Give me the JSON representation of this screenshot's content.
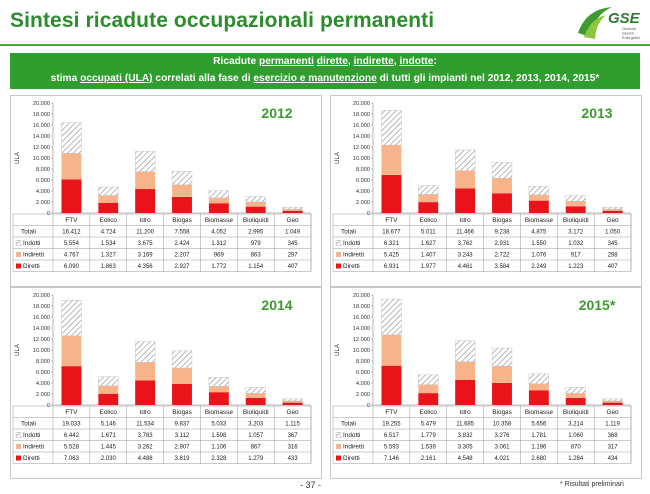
{
  "header": {
    "title": "Sintesi ricadute occupazionali permanenti",
    "logo_text": "GSE",
    "logo_sub1": "Gestore",
    "logo_sub2": "Servizi",
    "logo_sub3": "Energetici"
  },
  "banner": {
    "l1_a": "Ricadute ",
    "l1_b": "permanenti",
    "l1_c": " ",
    "l1_d": "dirette",
    "l1_e": ", ",
    "l1_f": "indirette",
    "l1_g": ", ",
    "l1_h": "indotte",
    "l1_i": ":",
    "l2_a": "stima ",
    "l2_b": "occupati (ULA)",
    "l2_c": " correlati alla fase di ",
    "l2_d": "esercizio e manutenzione",
    "l2_e": "  di tutti gli impianti nel 2012, 2013, 2014, 2015*"
  },
  "footer": {
    "page": "- 37 -",
    "note": "* Risultati preliminari"
  },
  "colors": {
    "diretti": "#e8141a",
    "indiretti": "#f7b48c",
    "indotti_stroke": "#9a9a9a",
    "green": "#2f9e2f"
  },
  "chart_data": [
    {
      "type": "bar",
      "stacked": true,
      "year": "2012",
      "ylabel": "ULA",
      "ylim": [
        0,
        20000
      ],
      "yticks": [
        "0",
        "2.000",
        "4.000",
        "6.000",
        "8.000",
        "10.000",
        "12.000",
        "14.000",
        "16.000",
        "18.000",
        "20.000"
      ],
      "categories": [
        "FTV",
        "Eolico",
        "Idro",
        "Biogas",
        "Biomasse",
        "Bioliquidi",
        "Geo"
      ],
      "row_labels": {
        "totali": "Totali",
        "indotti": "Indotti",
        "indiretti": "Indiretti",
        "diretti": "Diretti"
      },
      "series": [
        {
          "name": "Diretti",
          "values": [
            6090,
            1863,
            4356,
            2927,
            1772,
            1154,
            407
          ]
        },
        {
          "name": "Indiretti",
          "values": [
            4767,
            1327,
            3169,
            2207,
            969,
            863,
            297
          ]
        },
        {
          "name": "Indotti",
          "values": [
            5554,
            1534,
            3675,
            2424,
            1312,
            979,
            345
          ]
        }
      ],
      "table": {
        "totali": [
          "16.412",
          "4.724",
          "11.200",
          "7.558",
          "4.052",
          "2.995",
          "1.049"
        ],
        "indotti": [
          "5.554",
          "1.534",
          "3.675",
          "2.424",
          "1.312",
          "979",
          "345"
        ],
        "indiretti": [
          "4.767",
          "1.327",
          "3.169",
          "2.207",
          "969",
          "863",
          "297"
        ],
        "diretti": [
          "6.090",
          "1.863",
          "4.356",
          "2.927",
          "1.772",
          "1.154",
          "407"
        ]
      }
    },
    {
      "type": "bar",
      "stacked": true,
      "year": "2013",
      "ylabel": "ULA",
      "ylim": [
        0,
        20000
      ],
      "yticks": [
        "0",
        "2.000",
        "4.000",
        "6.000",
        "8.000",
        "10.000",
        "12.000",
        "14.000",
        "16.000",
        "18.000",
        "20.000"
      ],
      "categories": [
        "FTV",
        "Eolico",
        "Idro",
        "Biogas",
        "Biomasse",
        "Bioliquidi",
        "Geo"
      ],
      "row_labels": {
        "totali": "Totali",
        "indotti": "Indotti",
        "indiretti": "Indiretti",
        "diretti": "Diretti"
      },
      "series": [
        {
          "name": "Diretti",
          "values": [
            6931,
            1977,
            4461,
            3584,
            2249,
            1223,
            407
          ]
        },
        {
          "name": "Indiretti",
          "values": [
            5425,
            1407,
            3243,
            2722,
            1076,
            917,
            298
          ]
        },
        {
          "name": "Indotti",
          "values": [
            6321,
            1627,
            3762,
            2931,
            1550,
            1032,
            345
          ]
        }
      ],
      "table": {
        "totali": [
          "18.677",
          "5.011",
          "11.466",
          "9.238",
          "4.875",
          "3.172",
          "1.050"
        ],
        "indotti": [
          "6.321",
          "1.627",
          "3.762",
          "2.931",
          "1.550",
          "1.032",
          "345"
        ],
        "indiretti": [
          "5.425",
          "1.407",
          "3.243",
          "2.722",
          "1.076",
          "917",
          "298"
        ],
        "diretti": [
          "6.931",
          "1.977",
          "4.461",
          "3.584",
          "2.249",
          "1.223",
          "407"
        ]
      }
    },
    {
      "type": "bar",
      "stacked": true,
      "year": "2014",
      "ylabel": "ULA",
      "ylim": [
        0,
        20000
      ],
      "yticks": [
        "0",
        "2.000",
        "4.000",
        "6.000",
        "8.000",
        "10.000",
        "12.000",
        "14.000",
        "16.000",
        "18.000",
        "20.000"
      ],
      "categories": [
        "FTV",
        "Eolico",
        "Idro",
        "Biogas",
        "Biomasse",
        "Bioliquidi",
        "Geo"
      ],
      "row_labels": {
        "totali": "Totali",
        "indotti": "Indotti",
        "indiretti": "Indiretti",
        "diretti": "Diretti"
      },
      "series": [
        {
          "name": "Diretti",
          "values": [
            7063,
            2030,
            4488,
            3819,
            2328,
            1279,
            433
          ]
        },
        {
          "name": "Indiretti",
          "values": [
            5528,
            1445,
            3262,
            2907,
            1106,
            867,
            316
          ]
        },
        {
          "name": "Indotti",
          "values": [
            6442,
            1671,
            3783,
            3112,
            1598,
            1057,
            367
          ]
        }
      ],
      "table": {
        "totali": [
          "19.033",
          "5.146",
          "11.534",
          "9.837",
          "5.033",
          "3.203",
          "1.115"
        ],
        "indotti": [
          "6.442",
          "1.671",
          "3.783",
          "3.112",
          "1.598",
          "1.057",
          "367"
        ],
        "indiretti": [
          "5.528",
          "1.445",
          "3.262",
          "2.907",
          "1.106",
          "867",
          "316"
        ],
        "diretti": [
          "7.063",
          "2.030",
          "4.488",
          "3.819",
          "2.328",
          "1.279",
          "433"
        ]
      }
    },
    {
      "type": "bar",
      "stacked": true,
      "year": "2015*",
      "ylabel": "ULA",
      "ylim": [
        0,
        20000
      ],
      "yticks": [
        "0",
        "2.000",
        "4.000",
        "6.000",
        "8.000",
        "10.000",
        "12.000",
        "14.000",
        "16.000",
        "18.000",
        "20.000"
      ],
      "categories": [
        "FTV",
        "Eolico",
        "Idro",
        "Biogas",
        "Biomasse",
        "Bioliquidi",
        "Geo"
      ],
      "row_labels": {
        "totali": "Totali",
        "indotti": "Indotti",
        "indiretti": "Indiretti",
        "diretti": "Diretti"
      },
      "series": [
        {
          "name": "Diretti",
          "values": [
            7146,
            2161,
            4548,
            4021,
            2680,
            1284,
            434
          ]
        },
        {
          "name": "Indiretti",
          "values": [
            5593,
            1539,
            3305,
            3061,
            1196,
            870,
            317
          ]
        },
        {
          "name": "Indotti",
          "values": [
            6517,
            1779,
            3832,
            3276,
            1781,
            1060,
            368
          ]
        }
      ],
      "table": {
        "totali": [
          "19.255",
          "5.479",
          "11.685",
          "10.358",
          "5.656",
          "3.214",
          "1.119"
        ],
        "indotti": [
          "6.517",
          "1.779",
          "3.832",
          "3.276",
          "1.781",
          "1.060",
          "368"
        ],
        "indiretti": [
          "5.593",
          "1.539",
          "3.305",
          "3.061",
          "1.196",
          "870",
          "317"
        ],
        "diretti": [
          "7.146",
          "2.161",
          "4.548",
          "4.021",
          "2.680",
          "1.284",
          "434"
        ]
      }
    }
  ]
}
